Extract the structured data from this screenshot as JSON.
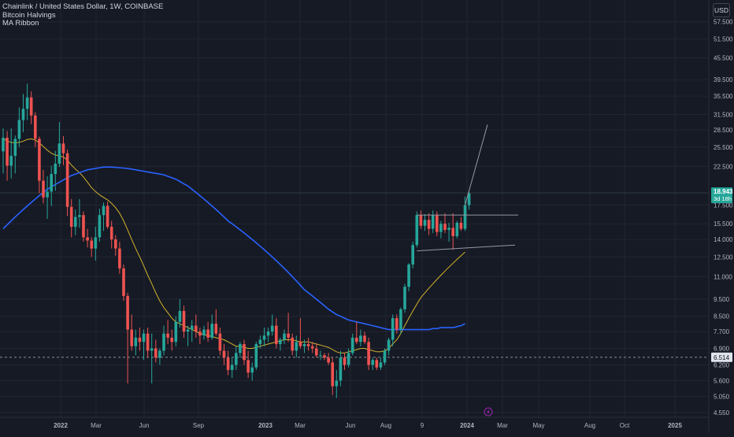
{
  "legend": {
    "symbol": "Chainlink / United States Dollar, 1W, COINBASE",
    "indicator1": "Bitcoin Halvings",
    "indicator2": "MA Ribbon"
  },
  "currency_button": "USD",
  "colors": {
    "background": "#161a25",
    "up": "#26a69a",
    "down": "#ef5350",
    "ma_fast": "#d4b32c",
    "ma_slow": "#2962ff",
    "grid": "#232632",
    "axis_text": "#b2b5be",
    "trendline": "#9598a1",
    "current_price_badge": "#26a69a",
    "halving_marker": "#9c27b0"
  },
  "halving_marker_icon": "lightning-bolt-icon",
  "price_badges": {
    "last_price": "18.943",
    "countdown": "3d 18h",
    "marked_level": "6.514"
  },
  "chart_data": {
    "type": "candlestick",
    "scale": "log",
    "ylim": [
      4.55,
      62
    ],
    "y_ticks": [
      "57.500",
      "51.500",
      "45.500",
      "39.500",
      "35.500",
      "31.500",
      "28.500",
      "25.500",
      "22.500",
      "17.500",
      "15.500",
      "14.000",
      "12.500",
      "11.000",
      "9.500",
      "8.500",
      "7.700",
      "6.900",
      "6.200",
      "5.600",
      "5.050",
      "4.550"
    ],
    "x_ticks": [
      "2022",
      "Mar",
      "Jun",
      "Sep",
      "2023",
      "Mar",
      "Jun",
      "Aug",
      "9",
      "2024",
      "Mar",
      "May",
      "Aug",
      "Oct",
      "2025"
    ],
    "last_price": 18.943,
    "marked_level": 6.514,
    "ohlc": [
      [
        24.8,
        28.8,
        21.5,
        27.1
      ],
      [
        27.1,
        28.3,
        20.5,
        22.6
      ],
      [
        22.6,
        28.8,
        20.8,
        24.1
      ],
      [
        24.1,
        27.5,
        21.5,
        26.9
      ],
      [
        26.9,
        33.0,
        25.5,
        30.4
      ],
      [
        30.4,
        36.0,
        28.1,
        32.7
      ],
      [
        32.7,
        38.5,
        30.4,
        35.2
      ],
      [
        35.2,
        36.6,
        29.6,
        31.3
      ],
      [
        31.3,
        32.0,
        25.5,
        26.9
      ],
      [
        26.9,
        27.3,
        18.9,
        20.5
      ],
      [
        20.5,
        22.0,
        17.7,
        18.4
      ],
      [
        18.4,
        21.1,
        16.0,
        19.1
      ],
      [
        19.1,
        22.6,
        17.4,
        21.4
      ],
      [
        21.4,
        24.9,
        19.2,
        22.9
      ],
      [
        22.9,
        30.0,
        22.4,
        26.1
      ],
      [
        26.1,
        27.4,
        22.7,
        24.5
      ],
      [
        24.5,
        25.1,
        16.3,
        17.3
      ],
      [
        17.3,
        18.2,
        14.2,
        15.2
      ],
      [
        15.2,
        17.0,
        14.4,
        16.2
      ],
      [
        16.2,
        18.2,
        15.1,
        16.4
      ],
      [
        16.4,
        16.8,
        13.8,
        14.2
      ],
      [
        14.2,
        15.0,
        13.3,
        13.9
      ],
      [
        13.9,
        14.2,
        12.5,
        13.2
      ],
      [
        13.2,
        15.2,
        12.2,
        14.2
      ],
      [
        14.2,
        17.1,
        13.8,
        16.4
      ],
      [
        16.4,
        17.8,
        14.8,
        17.4
      ],
      [
        17.4,
        17.9,
        15.0,
        15.2
      ],
      [
        15.2,
        15.8,
        13.2,
        14.0
      ],
      [
        14.0,
        14.4,
        12.6,
        13.2
      ],
      [
        13.2,
        13.8,
        11.2,
        11.6
      ],
      [
        11.6,
        11.9,
        9.4,
        9.7
      ],
      [
        9.7,
        9.9,
        5.5,
        7.8
      ],
      [
        7.8,
        8.6,
        6.8,
        7.0
      ],
      [
        7.0,
        7.8,
        6.6,
        7.4
      ],
      [
        7.4,
        7.9,
        6.8,
        7.2
      ],
      [
        7.2,
        7.8,
        6.4,
        7.6
      ],
      [
        7.6,
        7.9,
        6.5,
        6.8
      ],
      [
        6.8,
        7.6,
        5.5,
        6.9
      ],
      [
        6.9,
        7.3,
        6.3,
        6.5
      ],
      [
        6.5,
        6.9,
        6.2,
        6.8
      ],
      [
        6.8,
        8.0,
        6.6,
        7.6
      ],
      [
        7.6,
        8.3,
        7.1,
        7.4
      ],
      [
        7.4,
        7.8,
        6.8,
        7.2
      ],
      [
        7.2,
        8.5,
        7.0,
        8.2
      ],
      [
        8.2,
        9.5,
        7.9,
        8.8
      ],
      [
        8.8,
        9.1,
        7.4,
        7.7
      ],
      [
        7.7,
        8.0,
        7.0,
        7.8
      ],
      [
        7.8,
        8.3,
        7.2,
        8.0
      ],
      [
        8.0,
        8.6,
        7.4,
        7.7
      ],
      [
        7.7,
        7.9,
        7.1,
        7.5
      ],
      [
        7.5,
        8.0,
        7.3,
        7.8
      ],
      [
        7.8,
        8.2,
        7.2,
        7.4
      ],
      [
        7.4,
        8.6,
        7.3,
        8.1
      ],
      [
        8.1,
        8.9,
        7.5,
        7.6
      ],
      [
        7.6,
        7.9,
        6.6,
        6.8
      ],
      [
        6.8,
        7.1,
        6.2,
        6.5
      ],
      [
        6.5,
        6.8,
        5.8,
        6.0
      ],
      [
        6.0,
        6.5,
        5.7,
        6.2
      ],
      [
        6.2,
        7.0,
        6.0,
        6.7
      ],
      [
        6.7,
        7.2,
        6.5,
        7.1
      ],
      [
        7.1,
        7.3,
        6.2,
        6.4
      ],
      [
        6.4,
        6.8,
        5.7,
        5.9
      ],
      [
        5.9,
        6.3,
        5.6,
        6.1
      ],
      [
        6.1,
        7.2,
        6.0,
        7.1
      ],
      [
        7.1,
        7.5,
        6.9,
        7.3
      ],
      [
        7.3,
        7.9,
        7.0,
        7.5
      ],
      [
        7.5,
        7.9,
        7.2,
        7.7
      ],
      [
        7.7,
        8.6,
        7.5,
        8.0
      ],
      [
        8.0,
        8.4,
        6.9,
        7.1
      ],
      [
        7.1,
        7.4,
        6.8,
        7.3
      ],
      [
        7.3,
        7.8,
        7.1,
        7.6
      ],
      [
        7.6,
        8.7,
        7.2,
        7.4
      ],
      [
        7.4,
        7.6,
        6.6,
        6.8
      ],
      [
        6.8,
        7.5,
        6.5,
        7.2
      ],
      [
        7.2,
        8.4,
        6.9,
        7.0
      ],
      [
        7.0,
        7.3,
        6.7,
        7.1
      ],
      [
        7.1,
        7.4,
        6.8,
        7.0
      ],
      [
        7.0,
        7.2,
        6.7,
        6.9
      ],
      [
        6.9,
        7.1,
        6.5,
        6.6
      ],
      [
        6.6,
        6.8,
        6.4,
        6.6
      ],
      [
        6.6,
        6.7,
        6.4,
        6.5
      ],
      [
        6.5,
        6.7,
        6.2,
        6.3
      ],
      [
        6.3,
        6.5,
        5.1,
        5.4
      ],
      [
        5.4,
        6.0,
        5.0,
        5.6
      ],
      [
        5.6,
        6.8,
        5.4,
        6.5
      ],
      [
        6.5,
        6.7,
        6.0,
        6.2
      ],
      [
        6.2,
        6.9,
        6.1,
        6.7
      ],
      [
        6.7,
        7.6,
        6.6,
        7.4
      ],
      [
        7.4,
        8.2,
        7.1,
        7.2
      ],
      [
        7.2,
        7.8,
        7.0,
        7.5
      ],
      [
        7.5,
        7.7,
        7.1,
        7.2
      ],
      [
        7.2,
        7.4,
        6.0,
        6.2
      ],
      [
        6.2,
        6.5,
        6.0,
        6.4
      ],
      [
        6.4,
        6.5,
        6.0,
        6.1
      ],
      [
        6.1,
        6.5,
        6.0,
        6.3
      ],
      [
        6.3,
        6.9,
        6.2,
        6.8
      ],
      [
        6.8,
        7.4,
        6.6,
        7.3
      ],
      [
        7.3,
        8.6,
        7.0,
        8.4
      ],
      [
        8.4,
        8.6,
        7.6,
        7.8
      ],
      [
        7.8,
        9.0,
        7.6,
        8.9
      ],
      [
        8.9,
        10.5,
        8.7,
        10.3
      ],
      [
        10.3,
        12.0,
        10.0,
        11.9
      ],
      [
        11.9,
        13.8,
        11.6,
        13.5
      ],
      [
        13.5,
        16.8,
        13.3,
        16.4
      ],
      [
        16.4,
        16.9,
        15.0,
        15.3
      ],
      [
        15.3,
        16.5,
        14.8,
        15.9
      ],
      [
        15.9,
        16.6,
        14.4,
        15.0
      ],
      [
        15.0,
        16.9,
        14.6,
        16.4
      ],
      [
        16.4,
        16.8,
        14.3,
        14.7
      ],
      [
        14.7,
        15.8,
        14.1,
        15.5
      ],
      [
        15.5,
        16.6,
        14.6,
        14.9
      ],
      [
        14.9,
        15.6,
        13.8,
        15.1
      ],
      [
        15.1,
        16.6,
        13.1,
        14.3
      ],
      [
        14.3,
        15.8,
        14.1,
        15.6
      ],
      [
        15.6,
        16.2,
        14.8,
        15.0
      ],
      [
        15.0,
        18.5,
        14.8,
        17.5
      ],
      [
        17.5,
        19.2,
        17.0,
        18.9
      ]
    ],
    "series": [
      {
        "values": [
          27.0,
          26.5,
          26.3,
          26.2,
          26.3,
          26.5,
          26.8,
          26.9,
          26.7,
          26.2,
          25.6,
          25.0,
          24.5,
          24.2,
          24.1,
          23.9,
          23.4,
          22.7,
          22.1,
          21.6,
          21.0,
          20.3,
          19.6,
          19.1,
          18.7,
          18.4,
          18.1,
          17.7,
          17.2,
          16.6,
          15.8,
          14.9,
          14.0,
          13.2,
          12.5,
          11.8,
          11.1,
          10.5,
          9.9,
          9.4,
          9.0,
          8.7,
          8.4,
          8.2,
          8.1,
          8.0,
          7.9,
          7.8,
          7.7,
          7.6,
          7.55,
          7.5,
          7.45,
          7.4,
          7.35,
          7.3,
          7.2,
          7.1,
          7.0,
          7.0,
          6.95,
          6.9,
          6.9,
          6.95,
          7.0,
          7.05,
          7.1,
          7.15,
          7.2,
          7.25,
          7.3,
          7.3,
          7.3,
          7.25,
          7.2,
          7.2,
          7.2,
          7.15,
          7.1,
          7.05,
          7.0,
          6.95,
          6.85,
          6.75,
          6.7,
          6.7,
          6.75,
          6.8,
          6.85,
          6.9,
          6.9,
          6.85,
          6.8,
          6.75,
          6.75,
          6.8,
          6.9,
          7.1,
          7.3,
          7.6,
          8.0,
          8.4,
          8.8,
          9.2,
          9.6,
          9.9,
          10.2,
          10.5,
          10.8,
          11.1,
          11.4,
          11.7,
          12.0,
          12.3,
          12.6,
          12.9
        ]
      },
      {
        "values": [
          15.0,
          15.4,
          15.8,
          16.2,
          16.6,
          17.0,
          17.4,
          17.8,
          18.2,
          18.6,
          19.0,
          19.4,
          19.7,
          20.0,
          20.3,
          20.6,
          20.9,
          21.2,
          21.4,
          21.6,
          21.8,
          22.0,
          22.1,
          22.2,
          22.3,
          22.4,
          22.4,
          22.4,
          22.35,
          22.3,
          22.25,
          22.2,
          22.1,
          22.0,
          21.9,
          21.8,
          21.7,
          21.6,
          21.5,
          21.4,
          21.3,
          21.1,
          20.9,
          20.7,
          20.4,
          20.1,
          19.8,
          19.4,
          19.0,
          18.6,
          18.2,
          17.8,
          17.4,
          17.0,
          16.6,
          16.2,
          15.8,
          15.5,
          15.2,
          14.9,
          14.6,
          14.3,
          14.0,
          13.7,
          13.4,
          13.1,
          12.8,
          12.5,
          12.2,
          11.9,
          11.6,
          11.3,
          11.0,
          10.7,
          10.4,
          10.1,
          9.9,
          9.7,
          9.5,
          9.3,
          9.1,
          8.9,
          8.75,
          8.6,
          8.5,
          8.4,
          8.3,
          8.25,
          8.2,
          8.15,
          8.1,
          8.05,
          8.0,
          7.95,
          7.9,
          7.85,
          7.8,
          7.8,
          7.8,
          7.8,
          7.8,
          7.8,
          7.8,
          7.8,
          7.8,
          7.8,
          7.8,
          7.85,
          7.85,
          7.9,
          7.9,
          7.9,
          7.9,
          7.95,
          8.0,
          8.1
        ]
      }
    ]
  }
}
